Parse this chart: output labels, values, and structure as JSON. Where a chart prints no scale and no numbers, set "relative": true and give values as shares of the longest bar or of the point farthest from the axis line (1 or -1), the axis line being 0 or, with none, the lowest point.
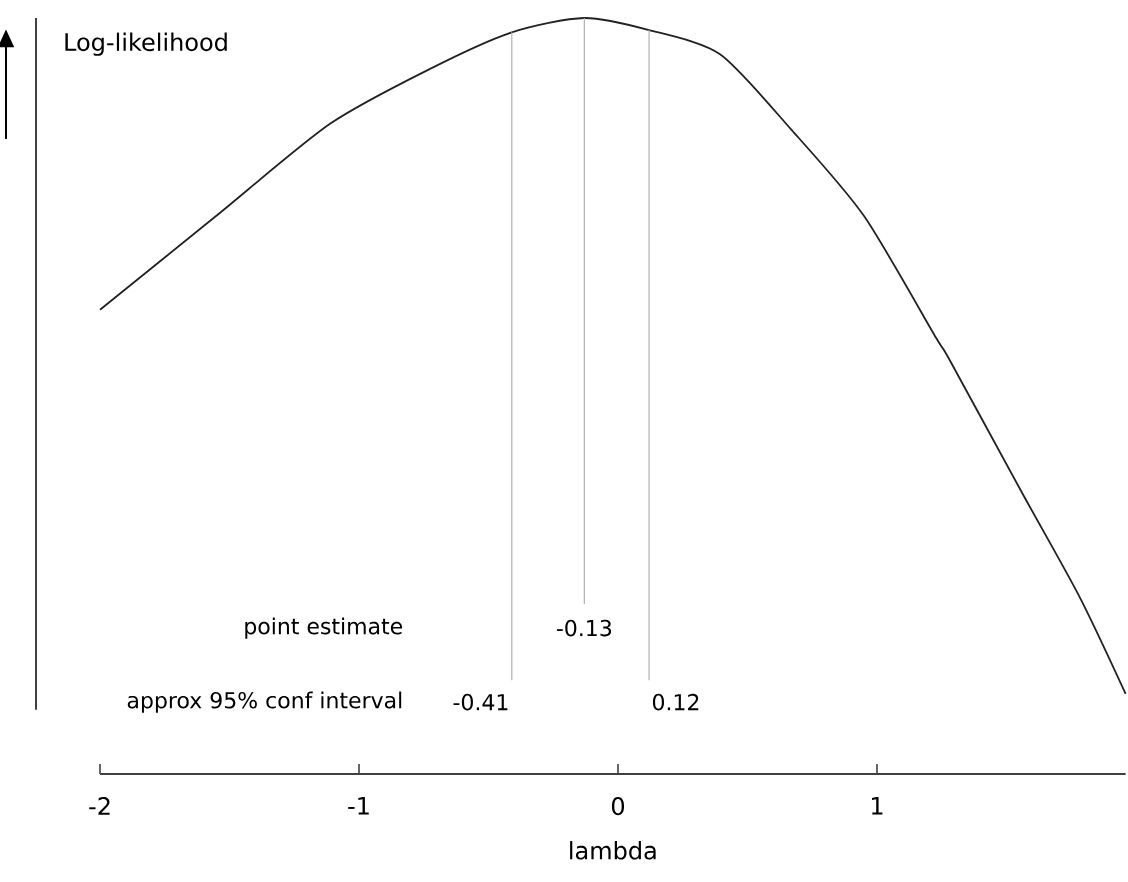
{
  "chart_data": {
    "type": "line",
    "relative": true,
    "xlabel": "lambda",
    "ylabel": "Log-likelihood",
    "x": [
      -2,
      -1.552,
      -1.112,
      -0.718,
      -0.41,
      -0.13,
      0.12,
      0.394,
      0.67,
      0.95,
      1.228,
      1.28,
      1.56,
      1.784,
      1.96
    ],
    "series": [
      {
        "color": "#222222",
        "values": [
          0.614,
          0.738,
          0.86,
          0.934,
          0.981,
          1.0,
          0.984,
          0.952,
          0.852,
          0.738,
          0.577,
          0.548,
          0.372,
          0.233,
          0.106
        ]
      }
    ],
    "xlim": [
      -2,
      1.96
    ],
    "xticks": [
      -2,
      -1,
      0,
      1
    ],
    "ref_lines": [
      {
        "axis": "x",
        "value": -0.13,
        "label": "-0.13",
        "color": "#b0b0b0"
      },
      {
        "axis": "x",
        "value": -0.41,
        "label": "-0.41",
        "color": "#b0b0b0"
      },
      {
        "axis": "x",
        "value": 0.12,
        "label": "0.12",
        "color": "#b0b0b0"
      }
    ],
    "annotations": [
      "point estimate",
      "approx 95% conf interval"
    ],
    "marker": "none",
    "line_style": "solid"
  }
}
